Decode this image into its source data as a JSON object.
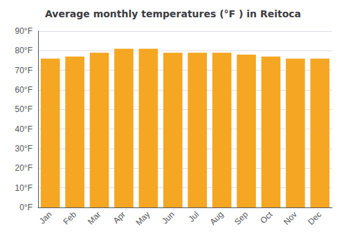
{
  "chart_data": {
    "type": "bar",
    "title": "Average monthly temperatures (°F ) in Reitoca",
    "categories": [
      "Jan",
      "Feb",
      "Mar",
      "Apr",
      "May",
      "Jun",
      "Jul",
      "Aug",
      "Sep",
      "Oct",
      "Nov",
      "Dec"
    ],
    "values": [
      76,
      77,
      79,
      81,
      81,
      79,
      79,
      79,
      78,
      77,
      76,
      76
    ],
    "color": "#F5A623",
    "ylim": [
      0,
      90
    ],
    "yticks": [
      {
        "value": 0,
        "label": "0°F"
      },
      {
        "value": 10,
        "label": "10°F"
      },
      {
        "value": 20,
        "label": "20°F"
      },
      {
        "value": 30,
        "label": "30°F"
      },
      {
        "value": 40,
        "label": "40°F"
      },
      {
        "value": 50,
        "label": "50°F"
      },
      {
        "value": 60,
        "label": "60°F"
      },
      {
        "value": 70,
        "label": "70°F"
      },
      {
        "value": 80,
        "label": "80°F"
      },
      {
        "value": 90,
        "label": "90°F"
      }
    ],
    "grid": true
  }
}
